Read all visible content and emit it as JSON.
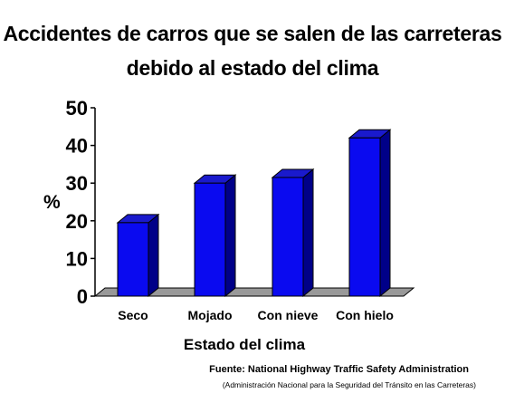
{
  "chart_data": {
    "type": "bar",
    "title_lines": [
      "Accidentes de carros que se salen de las carreteras",
      "debido al estado del clima"
    ],
    "xlabel": "Estado del clima",
    "ylabel": "%",
    "categories": [
      "Seco",
      "Mojado",
      "Con nieve",
      "Con hielo"
    ],
    "values": [
      19.5,
      30,
      31.5,
      42
    ],
    "ylim": [
      0,
      50
    ],
    "yticks": [
      "0",
      "10",
      "20",
      "30",
      "40",
      "50"
    ],
    "grid": false,
    "legend": "none",
    "colors": {
      "bar_front": "#0a0af0",
      "bar_side": "#000088",
      "bar_top": "#1a1acc",
      "floor": "#999999"
    },
    "source": "Fuente: National Highway Traffic Safety Administration",
    "source_sub": "(Administración Nacional para la Seguridad del Tránsito en las Carreteras)"
  }
}
